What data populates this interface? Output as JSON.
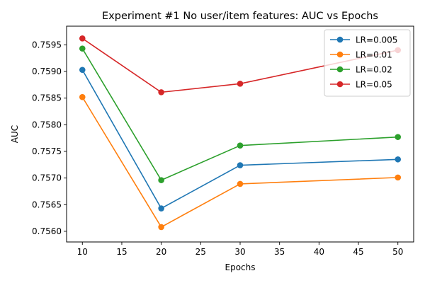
{
  "chart_data": {
    "type": "line",
    "title": "Experiment #1 No user/item features: AUC vs Epochs",
    "xlabel": "Epochs",
    "ylabel": "AUC",
    "x": [
      10,
      20,
      30,
      50
    ],
    "xlim": [
      8,
      52
    ],
    "ylim": [
      0.7558,
      0.75985
    ],
    "xticks": [
      10,
      15,
      20,
      25,
      30,
      35,
      40,
      45,
      50
    ],
    "xtick_labels": [
      "10",
      "15",
      "20",
      "25",
      "30",
      "35",
      "40",
      "45",
      "50"
    ],
    "yticks": [
      0.756,
      0.7565,
      0.757,
      0.7575,
      0.758,
      0.7585,
      0.759,
      0.7595
    ],
    "ytick_labels": [
      "0.7560",
      "0.7565",
      "0.7570",
      "0.7575",
      "0.7580",
      "0.7585",
      "0.7590",
      "0.7595"
    ],
    "grid": false,
    "legend_position": "top-right",
    "series": [
      {
        "name": "LR=0.005",
        "color": "#1f77b4",
        "values": [
          0.75903,
          0.75643,
          0.75724,
          0.75735
        ]
      },
      {
        "name": "LR=0.01",
        "color": "#ff7f0e",
        "values": [
          0.75852,
          0.75608,
          0.75689,
          0.75701
        ]
      },
      {
        "name": "LR=0.02",
        "color": "#2ca02c",
        "values": [
          0.75943,
          0.75696,
          0.75761,
          0.75777
        ]
      },
      {
        "name": "LR=0.05",
        "color": "#d62728",
        "values": [
          0.75962,
          0.75861,
          0.75877,
          0.7594
        ]
      }
    ]
  }
}
